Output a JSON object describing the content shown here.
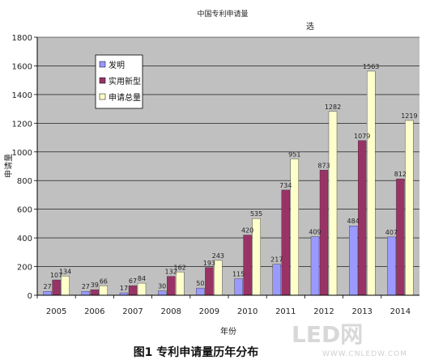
{
  "caption": "图1 专利申请量历年分布",
  "watermark": {
    "text": "LED网",
    "url": "WWW.CNLEDW.COM"
  },
  "chart_data": {
    "type": "bar",
    "title": "中国专利申请量",
    "subtitle": "选",
    "xlabel": "年份",
    "ylabel": "申请量",
    "ylim": [
      0,
      1800
    ],
    "yticks": [
      0,
      200,
      400,
      600,
      800,
      1000,
      1200,
      1400,
      1600,
      1800
    ],
    "grid": true,
    "legend_position": "top-left",
    "categories": [
      "2005",
      "2006",
      "2007",
      "2008",
      "2009",
      "2010",
      "2011",
      "2012",
      "2013",
      "2014"
    ],
    "series": [
      {
        "name": "发明",
        "color": "#9999ff",
        "values": [
          27,
          27,
          17,
          30,
          50,
          115,
          217,
          409,
          484,
          407
        ],
        "labels": [
          "27",
          "27",
          "17",
          "30",
          "50",
          "115",
          "217",
          "409",
          "484",
          "407"
        ]
      },
      {
        "name": "实用新型",
        "color": "#993366",
        "values": [
          107,
          39,
          67,
          132,
          193,
          420,
          734,
          873,
          1079,
          812
        ],
        "labels": [
          "107",
          "39",
          "67",
          "132",
          "193",
          "420",
          "734",
          "873",
          "1079",
          "812"
        ]
      },
      {
        "name": "申请总量",
        "color": "#ffffcc",
        "values": [
          134,
          66,
          84,
          162,
          243,
          535,
          951,
          1282,
          1563,
          1219
        ],
        "labels": [
          "134",
          "66",
          "84",
          "162",
          "243",
          "535",
          "951",
          "1282",
          "1563",
          "1219"
        ]
      }
    ]
  }
}
